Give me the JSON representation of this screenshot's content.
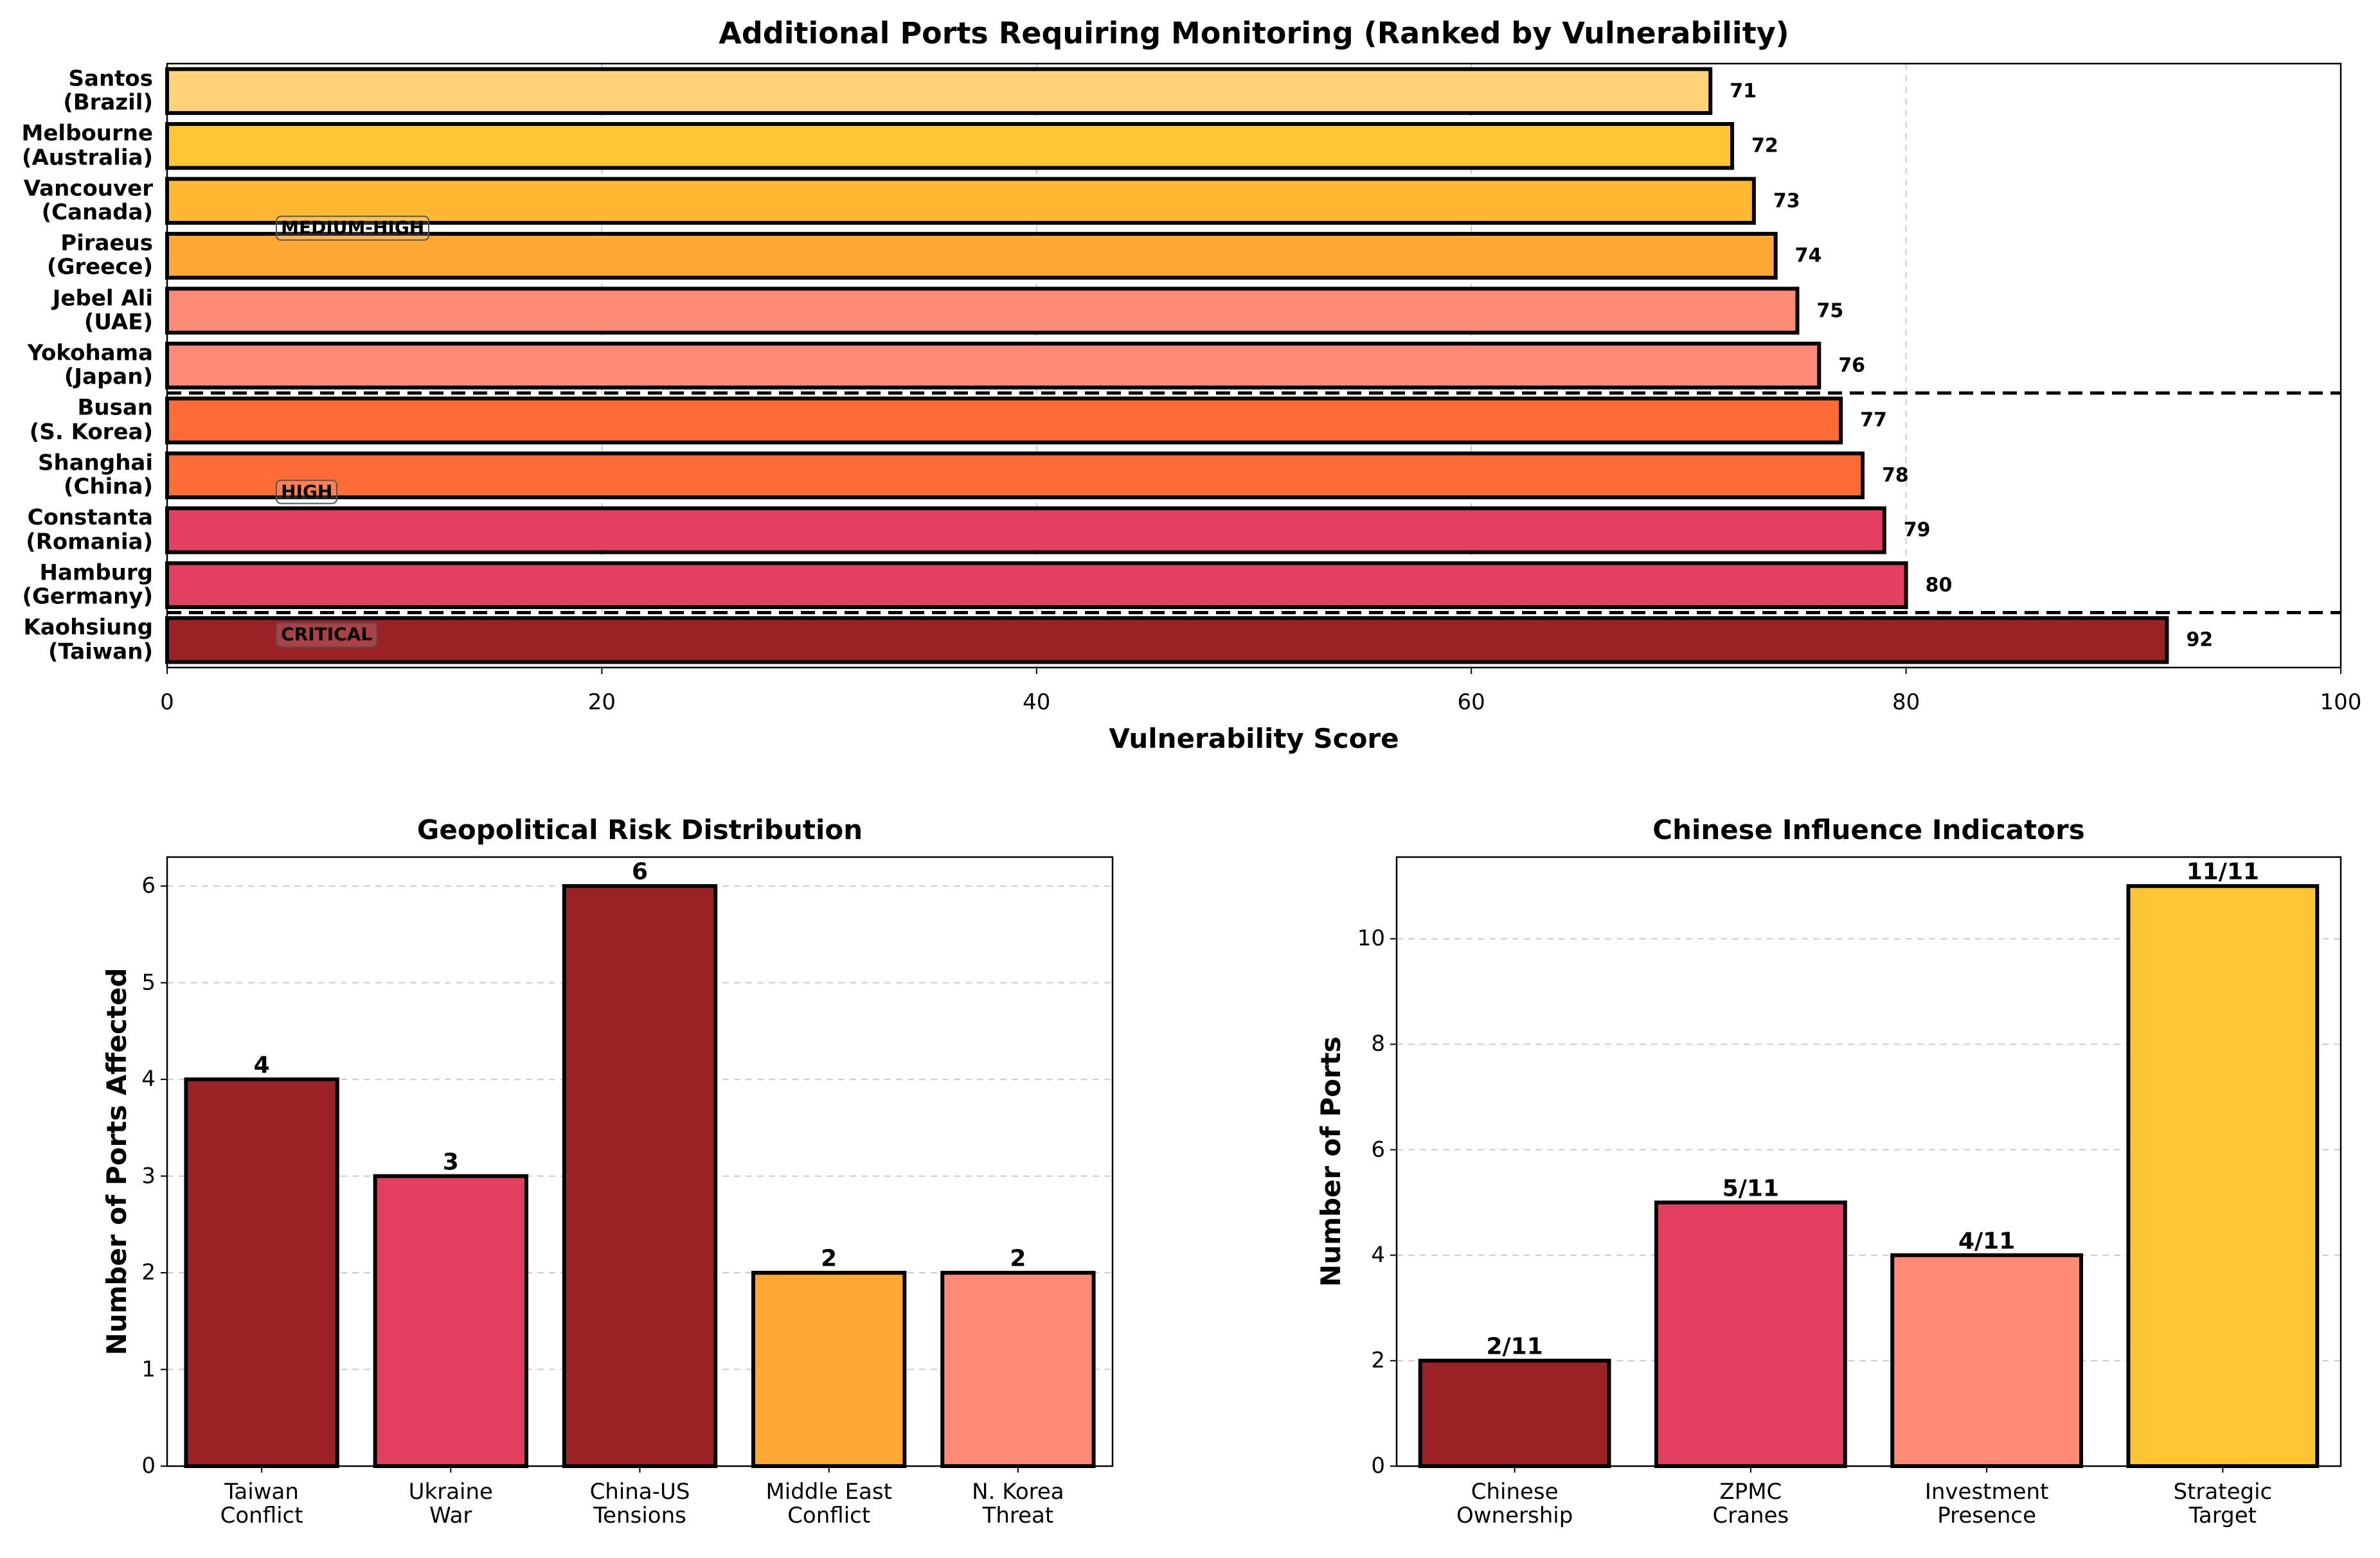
{
  "chart_data": [
    {
      "type": "hbar",
      "title": "Additional Ports Requiring Monitoring (Ranked by Vulnerability)",
      "x_label": "Vulnerability Score",
      "categories": [
        "Santos\n(Brazil)",
        "Melbourne\n(Australia)",
        "Vancouver\n(Canada)",
        "Piraeus\n(Greece)",
        "Jebel Ali\n(UAE)",
        "Yokohama\n(Japan)",
        "Busan\n(S. Korea)",
        "Shanghai\n(China)",
        "Constanta\n(Romania)",
        "Hamburg\n(Germany)",
        "Kaohsiung\n(Taiwan)"
      ],
      "values": [
        71,
        72,
        73,
        74,
        75,
        76,
        77,
        78,
        79,
        80,
        92
      ],
      "colors": [
        "#ffd27a",
        "#ffc533",
        "#ffb833",
        "#ffa733",
        "#ff8a75",
        "#ff8a75",
        "#ff6b35",
        "#ff6b35",
        "#e0405e",
        "#e0405e",
        "#9b2226"
      ],
      "annotations": [
        "MEDIUM-HIGH",
        "HIGH",
        "CRITICAL"
      ],
      "xlim": [
        0,
        100
      ],
      "xticks": [
        0,
        20,
        40,
        60,
        80,
        100
      ],
      "grid": "x"
    },
    {
      "type": "bar",
      "title": "Geopolitical Risk Distribution",
      "y_label": "Number of Ports Affected",
      "categories": [
        "Taiwan\nConflict",
        "Ukraine\nWar",
        "China-US\nTensions",
        "Middle East\nConflict",
        "N. Korea\nThreat"
      ],
      "values": [
        4,
        3,
        6,
        2,
        2
      ],
      "colors": [
        "#9b2226",
        "#e0405e",
        "#9b2226",
        "#ffa733",
        "#ff8a75"
      ],
      "ylim": [
        0,
        6.3
      ],
      "yticks": [
        0,
        1,
        2,
        3,
        4,
        5,
        6
      ],
      "grid": "y"
    },
    {
      "type": "bar",
      "title": "Chinese Influence Indicators",
      "y_label": "Number of Ports",
      "categories": [
        "Chinese\nOwnership",
        "ZPMC\nCranes",
        "Investment\nPresence",
        "Strategic\nTarget"
      ],
      "values": [
        2,
        5,
        4,
        11
      ],
      "value_labels": [
        "2/11",
        "5/11",
        "4/11",
        "11/11"
      ],
      "colors": [
        "#9b2226",
        "#e0405e",
        "#ff8a75",
        "#ffc533"
      ],
      "ylim": [
        0,
        11.55
      ],
      "yticks": [
        0,
        2,
        4,
        6,
        8,
        10
      ],
      "grid": "y"
    }
  ]
}
